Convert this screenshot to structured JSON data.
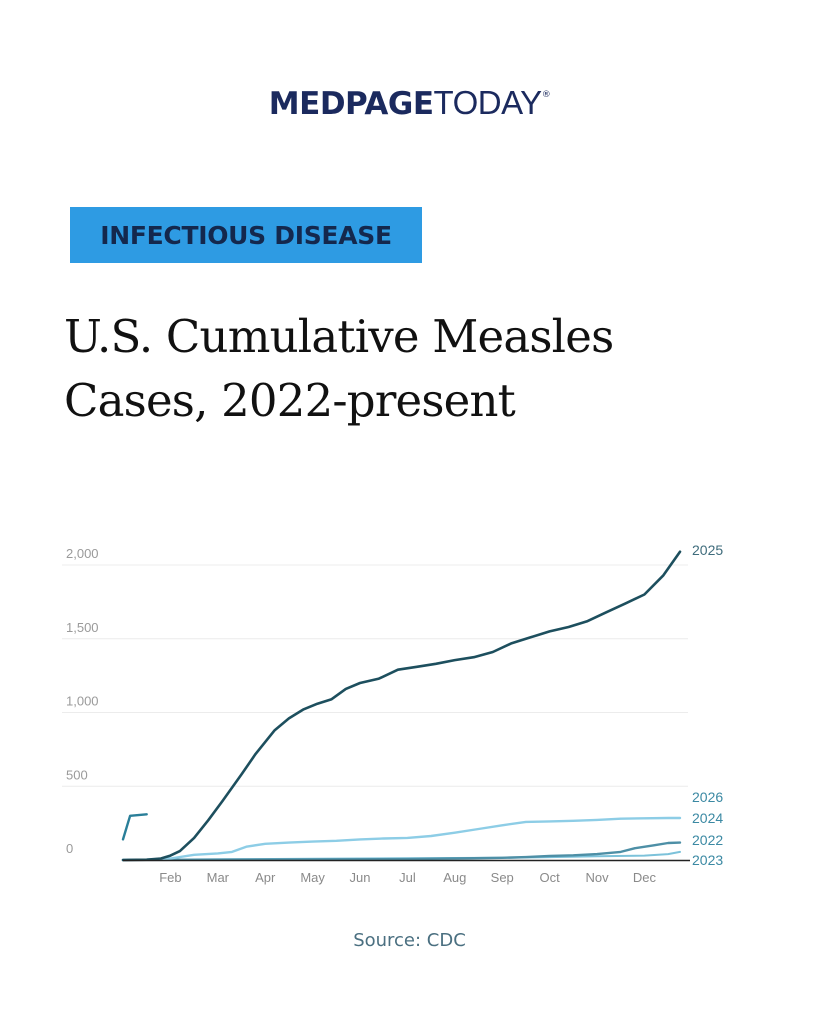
{
  "brand": {
    "logo_bold": "MEDPAGE",
    "logo_light": "TODAY",
    "logo_mark": "®"
  },
  "category_tag": "INFECTIOUS DISEASE",
  "headline": {
    "line1": "U.S. Cumulative Measles",
    "line2": "Cases, 2022-present"
  },
  "source": "Source: CDC",
  "colors": {
    "tag_bg": "#2e9be3",
    "logo": "#1b2a5e",
    "s2025": "#1d4f5e",
    "s2026": "#2a7f99",
    "s2024": "#8dcde6",
    "s2022": "#4d8fa6",
    "s2023": "#7cc2da"
  },
  "chart_data": {
    "type": "line",
    "title": "U.S. Cumulative Measles Cases, 2022-present",
    "xlabel": "",
    "ylabel": "",
    "x_unit": "months since Jan 1",
    "xlim": [
      0,
      12
    ],
    "ylim": [
      0,
      2100
    ],
    "grid": true,
    "legend": "direct labels at right end of lines",
    "y_ticks": [
      0,
      500,
      1000,
      1500,
      2000
    ],
    "y_tick_labels": [
      "0",
      "500",
      "1,000",
      "1,500",
      "2,000"
    ],
    "x_ticks": [
      1,
      2,
      3,
      4,
      5,
      6,
      7,
      8,
      9,
      10,
      11
    ],
    "x_tick_labels": [
      "Feb",
      "Mar",
      "Apr",
      "May",
      "Jun",
      "Jul",
      "Aug",
      "Sep",
      "Oct",
      "Nov",
      "Dec"
    ],
    "series": [
      {
        "name": "2025",
        "label": "2025",
        "x": [
          0,
          0.5,
          0.8,
          1.0,
          1.2,
          1.5,
          1.8,
          2.1,
          2.5,
          2.8,
          3.2,
          3.5,
          3.8,
          4.1,
          4.4,
          4.7,
          5.0,
          5.4,
          5.8,
          6.2,
          6.6,
          7.0,
          7.4,
          7.8,
          8.2,
          8.6,
          9.0,
          9.4,
          9.8,
          10.2,
          10.6,
          11.0,
          11.4,
          11.75
        ],
        "values": [
          0,
          2,
          10,
          30,
          60,
          150,
          270,
          400,
          580,
          720,
          880,
          960,
          1020,
          1060,
          1090,
          1160,
          1200,
          1230,
          1290,
          1310,
          1330,
          1355,
          1375,
          1410,
          1470,
          1510,
          1550,
          1580,
          1620,
          1680,
          1740,
          1800,
          1930,
          2090
        ]
      },
      {
        "name": "2026",
        "label": "2026",
        "x": [
          0,
          0.15,
          0.5
        ],
        "values": [
          140,
          300,
          310
        ]
      },
      {
        "name": "2024",
        "label": "2024",
        "x": [
          0,
          0.5,
          1.0,
          1.5,
          2.0,
          2.3,
          2.6,
          3.0,
          3.5,
          4.0,
          4.5,
          5.0,
          5.5,
          6.0,
          6.5,
          7.0,
          7.5,
          8.0,
          8.5,
          9.0,
          9.5,
          10.0,
          10.5,
          11.0,
          11.5,
          11.75
        ],
        "values": [
          0,
          3,
          10,
          35,
          45,
          55,
          90,
          110,
          118,
          125,
          130,
          140,
          146,
          150,
          163,
          185,
          210,
          235,
          258,
          262,
          266,
          272,
          280,
          283,
          285,
          285
        ]
      },
      {
        "name": "2022",
        "label": "2022",
        "x": [
          0,
          2,
          4,
          6,
          7,
          8,
          8.5,
          9,
          9.5,
          10,
          10.5,
          10.8,
          11.2,
          11.5,
          11.75
        ],
        "values": [
          0,
          2,
          4,
          6,
          10,
          15,
          20,
          28,
          32,
          40,
          55,
          80,
          100,
          115,
          118
        ]
      },
      {
        "name": "2023",
        "label": "2023",
        "x": [
          0,
          2,
          4,
          6,
          8,
          9,
          10,
          11,
          11.5,
          11.75
        ],
        "values": [
          0,
          5,
          8,
          12,
          15,
          20,
          25,
          30,
          40,
          55
        ]
      }
    ]
  }
}
